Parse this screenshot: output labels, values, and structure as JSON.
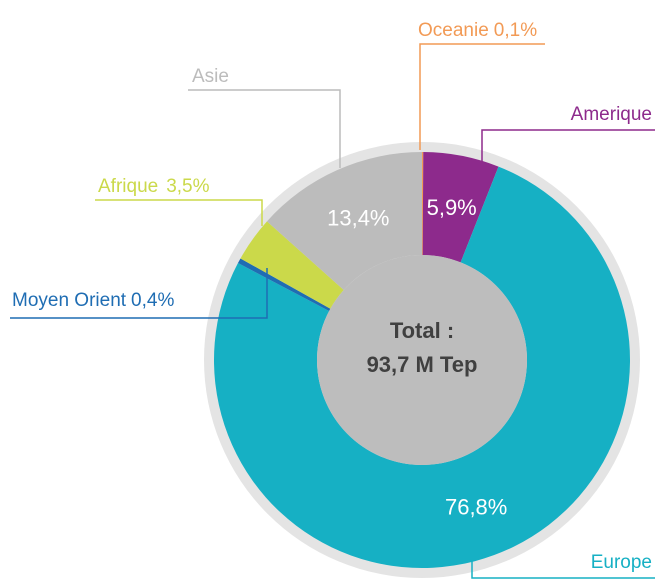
{
  "chart_data": {
    "type": "donut",
    "categories": [
      "Oceanie",
      "Amerique",
      "Europe",
      "Moyen Orient",
      "Afrique",
      "Asie"
    ],
    "values": [
      0.1,
      5.9,
      76.8,
      0.4,
      3.5,
      13.4
    ],
    "value_labels": [
      "0,1%",
      "5,9%",
      "76,8%",
      "0,4%",
      "3,5%",
      "13,4%"
    ],
    "colors": [
      "#f29a55",
      "#8d2a8c",
      "#16b0c4",
      "#1f6db3",
      "#cbd94a",
      "#bcbcbc"
    ],
    "center_label": [
      "Total :",
      "93,7 M Tep"
    ]
  }
}
